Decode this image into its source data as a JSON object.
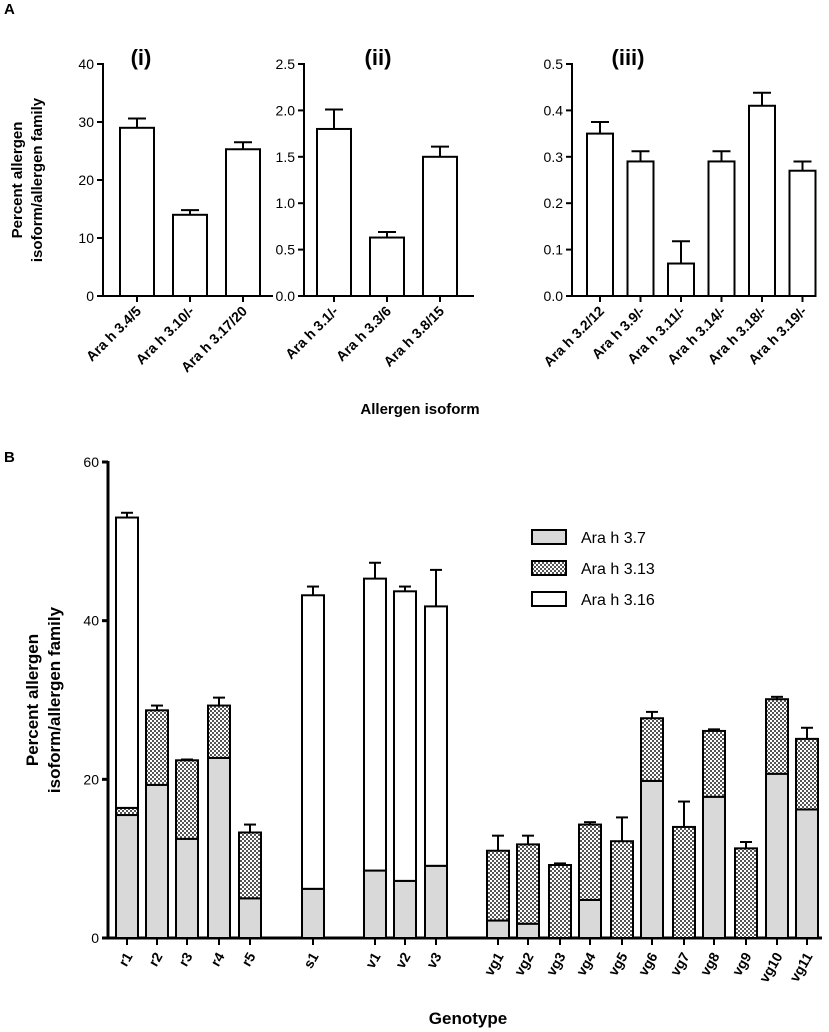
{
  "panel_labels": {
    "a": "A",
    "b": "B"
  },
  "panel_a": {
    "ylabel_line1": "Percent allergen",
    "ylabel_line2": "isoform/allergen family",
    "xlabel": "Allergen isoform"
  },
  "chart_data": [
    {
      "id": "A-i",
      "type": "bar",
      "title": "(i)",
      "categories": [
        "Ara h 3.4/5",
        "Ara h 3.10/-",
        "Ara h 3.17/20"
      ],
      "values": [
        29,
        14,
        25.3
      ],
      "errors": [
        1.6,
        0.8,
        1.2
      ],
      "ylim": [
        0,
        40
      ],
      "yticks": [
        0,
        10,
        20,
        30,
        40
      ],
      "ytick_labels": [
        "0",
        "10",
        "20",
        "30",
        "40"
      ],
      "ylabel": "Percent allergen isoform/allergen family",
      "xlabel": "Allergen isoform"
    },
    {
      "id": "A-ii",
      "type": "bar",
      "title": "(ii)",
      "categories": [
        "Ara h 3.1/-",
        "Ara h 3.3/6",
        "Ara h 3.8/15"
      ],
      "values": [
        1.8,
        0.63,
        1.5
      ],
      "errors": [
        0.21,
        0.06,
        0.11
      ],
      "ylim": [
        0,
        2.5
      ],
      "yticks": [
        0,
        0.5,
        1.0,
        1.5,
        2.0,
        2.5
      ],
      "ytick_labels": [
        "0.0",
        "0.5",
        "1.0",
        "1.5",
        "2.0",
        "2.5"
      ],
      "xlabel": "Allergen isoform"
    },
    {
      "id": "A-iii",
      "type": "bar",
      "title": "(iii)",
      "categories": [
        "Ara h 3.2/12",
        "Ara h 3.9/-",
        "Ara h 3.11/-",
        "Ara h 3.14/-",
        "Ara h 3.18/-",
        "Ara h 3.19/-"
      ],
      "values": [
        0.35,
        0.29,
        0.07,
        0.29,
        0.41,
        0.27
      ],
      "errors": [
        0.025,
        0.022,
        0.048,
        0.022,
        0.028,
        0.02
      ],
      "ylim": [
        0,
        0.5
      ],
      "yticks": [
        0,
        0.1,
        0.2,
        0.3,
        0.4,
        0.5
      ],
      "ytick_labels": [
        "0.0",
        "0.1",
        "0.2",
        "0.3",
        "0.4",
        "0.5"
      ],
      "xlabel": "Allergen isoform"
    },
    {
      "id": "B",
      "type": "bar",
      "stacked": true,
      "title": "",
      "categories": [
        "r1",
        "r2",
        "r3",
        "r4",
        "r5",
        "s1",
        "v1",
        "v2",
        "v3",
        "vg1",
        "vg2",
        "vg3",
        "vg4",
        "vg5",
        "vg6",
        "vg7",
        "vg8",
        "vg9",
        "vg10",
        "vg11"
      ],
      "series": [
        {
          "name": "Ara h 3.7",
          "values": [
            15.5,
            19.3,
            12.5,
            22.7,
            5.0,
            6.2,
            8.5,
            7.2,
            9.1,
            2.2,
            1.8,
            0,
            4.8,
            0,
            19.8,
            0,
            17.8,
            0,
            20.7,
            16.2
          ],
          "errors": [
            0.9,
            0.6,
            1.5,
            0.4,
            0.3,
            0.8,
            0.7,
            0.9,
            0.6,
            0.3,
            0.2,
            0,
            0.3,
            0,
            0.4,
            0,
            1.7,
            0,
            0.3,
            2.1
          ]
        },
        {
          "name": "Ara h 3.13",
          "values": [
            0.9,
            9.4,
            9.9,
            6.6,
            8.3,
            0,
            0,
            0,
            0,
            8.8,
            10.0,
            9.2,
            9.5,
            12.2,
            7.9,
            14.0,
            8.3,
            11.3,
            9.4,
            8.9
          ],
          "errors": [
            0,
            0.6,
            0.1,
            1.0,
            1.0,
            0,
            0,
            0,
            0,
            1.9,
            1.1,
            0.2,
            0.3,
            3.0,
            0.8,
            3.2,
            0.2,
            0.8,
            0.3,
            1.4
          ]
        },
        {
          "name": "Ara h 3.16",
          "values": [
            36.6,
            0,
            0,
            0,
            0,
            37.0,
            36.8,
            36.5,
            32.7,
            0,
            0,
            0,
            0,
            0,
            0,
            0,
            0,
            0,
            0,
            0
          ],
          "errors": [
            0.6,
            0,
            0,
            0,
            0,
            1.1,
            2.0,
            0.6,
            4.6,
            0,
            0,
            0,
            0,
            0,
            0,
            0,
            0,
            0,
            0,
            0
          ]
        }
      ],
      "ylim": [
        0,
        60
      ],
      "yticks": [
        0,
        20,
        40,
        60
      ],
      "ytick_labels": [
        "0",
        "20",
        "40",
        "60"
      ],
      "ylabel": "Percent allergen isoform/allergen family",
      "ylabel_line1": "Percent allergen",
      "ylabel_line2": "isoform/allergen family",
      "xlabel": "Genotype",
      "legend": [
        "Ara h 3.7",
        "Ara h 3.13",
        "Ara h 3.16"
      ],
      "legend_position": "top-right",
      "series_colors": [
        "#d9d9d9",
        "checkered",
        "#ffffff"
      ]
    }
  ]
}
